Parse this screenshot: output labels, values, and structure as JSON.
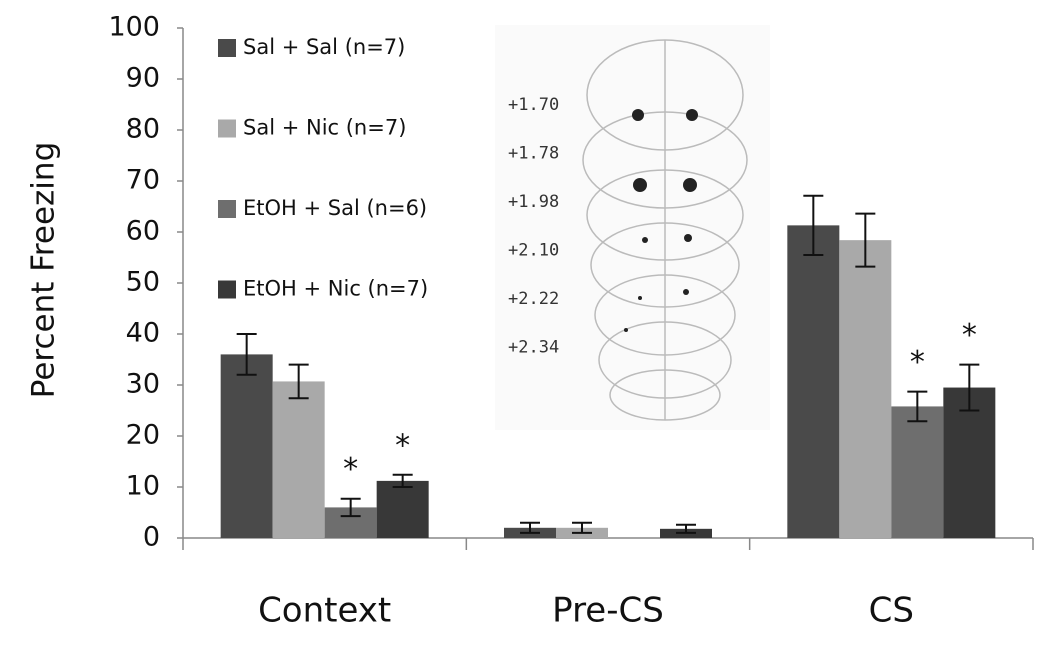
{
  "chart_data": {
    "type": "bar",
    "y_label": "Percent Freezing",
    "categories": [
      "Context",
      "Pre-CS",
      "CS"
    ],
    "ylim": [
      0,
      100
    ],
    "yticks": [
      0,
      10,
      20,
      30,
      40,
      50,
      60,
      70,
      80,
      90,
      100
    ],
    "series": [
      {
        "name": "Sal + Sal (n=7)",
        "color": "#4a4a4a",
        "values": [
          36,
          2,
          61.3
        ],
        "errors": [
          4,
          1,
          5.8
        ],
        "significance": [
          null,
          null,
          null
        ]
      },
      {
        "name": "Sal + Nic (n=7)",
        "color": "#a9a9a9",
        "values": [
          30.7,
          2,
          58.4
        ],
        "errors": [
          3.3,
          1,
          5.2
        ],
        "significance": [
          null,
          null,
          null
        ]
      },
      {
        "name": "EtOH + Sal (n=6)",
        "color": "#6e6e6e",
        "values": [
          6,
          null,
          25.8
        ],
        "errors": [
          1.7,
          null,
          2.9
        ],
        "significance": [
          "*",
          null,
          "*"
        ]
      },
      {
        "name": "EtOH +   Nic (n=7)",
        "color": "#383838",
        "values": [
          11.2,
          1.8,
          29.5
        ],
        "errors": [
          1.2,
          0.8,
          4.5
        ],
        "significance": [
          "*",
          null,
          "*"
        ]
      }
    ],
    "inset_labels": [
      "+1.70",
      "+1.78",
      "+1.98",
      "+2.10",
      "+2.22",
      "+2.34"
    ]
  }
}
